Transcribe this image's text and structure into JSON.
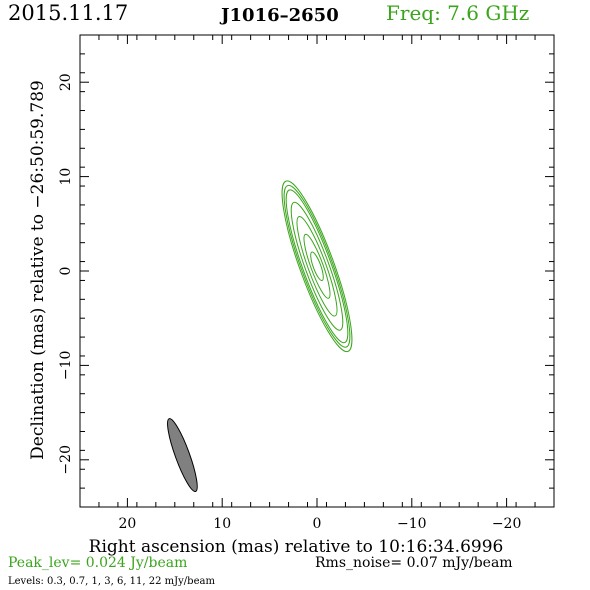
{
  "header": {
    "date": "2015.11.17",
    "source": "J1016–2650",
    "freq": "Freq: 7.6 GHz"
  },
  "colors": {
    "accent": "#3aa51c",
    "frame": "#000000",
    "beam_fill": "#808080"
  },
  "footer": {
    "peak": "Peak_lev=  0.024 Jy/beam",
    "rms": "Rms_noise= 0.07 mJy/beam",
    "levels": "Levels: 0.3, 0.7,    1,    3,    6,   11,   22 mJy/beam"
  },
  "chart_data": {
    "type": "contour",
    "xlabel": "Right ascension (mas) relative to 10:16:34.6996",
    "ylabel": "Declination (mas) relative to −26:50:59.789",
    "xlim": [
      25,
      -25
    ],
    "ylim": [
      -25,
      25
    ],
    "xticks": [
      20,
      10,
      0,
      -10,
      -20
    ],
    "yticks": [
      20,
      10,
      0,
      -10,
      -20
    ],
    "xtick_labels": [
      "20",
      "10",
      "0",
      "−10",
      "−20"
    ],
    "ytick_labels": [
      "20",
      "10",
      "0",
      "−10",
      "−20"
    ],
    "contour_levels_mJy": [
      0.3,
      0.7,
      1,
      3,
      6,
      11,
      22
    ],
    "peak_Jy_per_beam": 0.024,
    "rms_mJy_per_beam": 0.07,
    "source_center": [
      0,
      0.5
    ],
    "source_position_angle_deg": 160,
    "contours": [
      {
        "level": 0.3,
        "semi_major": 9.6,
        "semi_minor": 1.8
      },
      {
        "level": 0.7,
        "semi_major": 9.1,
        "semi_minor": 1.65
      },
      {
        "level": 1,
        "semi_major": 8.6,
        "semi_minor": 1.5
      },
      {
        "level": 3,
        "semi_major": 7.2,
        "semi_minor": 1.25
      },
      {
        "level": 6,
        "semi_major": 5.6,
        "semi_minor": 0.95
      },
      {
        "level": 11,
        "semi_major": 3.6,
        "semi_minor": 0.65
      },
      {
        "level": 22,
        "semi_major": 1.6,
        "semi_minor": 0.4
      }
    ],
    "beam": {
      "center": [
        14.2,
        -19.5
      ],
      "semi_major": 4.1,
      "semi_minor": 0.75,
      "position_angle_deg": 160
    }
  }
}
